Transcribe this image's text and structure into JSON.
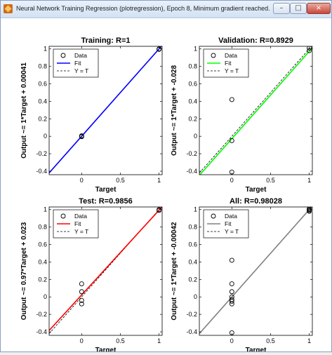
{
  "window": {
    "title": "Neural Network Training Regression (plotregression), Epoch 8, Minimum gradient reached.",
    "minimize_glyph": "–",
    "maximize_glyph": "□",
    "close_glyph": "×",
    "icon": "matlab-icon"
  },
  "legend_labels": {
    "data": "Data",
    "fit": "Fit",
    "ident": "Y = T"
  },
  "chart_data": [
    {
      "type": "scatter",
      "title": "Training: R=1",
      "xlabel": "Target",
      "ylabel": "Output ~= 1*Target + 0.00041",
      "xlim": [
        -0.42,
        1.04
      ],
      "ylim": [
        -0.44,
        1.03
      ],
      "xticks": [
        0,
        0.5,
        1
      ],
      "yticks": [
        -0.4,
        -0.2,
        0,
        0.2,
        0.4,
        0.6,
        0.8,
        1
      ],
      "fit_color": "#0000ff",
      "fit": {
        "slope": 1,
        "intercept": 0.00041
      },
      "points": [
        [
          0,
          0
        ],
        [
          0,
          0.005
        ],
        [
          0,
          -0.005
        ],
        [
          1,
          1
        ],
        [
          1,
          0.995
        ]
      ],
      "grid": false,
      "legend_position": "top-left"
    },
    {
      "type": "scatter",
      "title": "Validation: R=0.8929",
      "xlabel": "Target",
      "ylabel": "Output ~= 1*Target + -0.028",
      "xlim": [
        -0.42,
        1.04
      ],
      "ylim": [
        -0.44,
        1.03
      ],
      "xticks": [
        0,
        0.5,
        1
      ],
      "yticks": [
        -0.4,
        -0.2,
        0,
        0.2,
        0.4,
        0.6,
        0.8,
        1
      ],
      "fit_color": "#00ff00",
      "fit": {
        "slope": 1,
        "intercept": -0.028
      },
      "points": [
        [
          0,
          0.42
        ],
        [
          0,
          -0.05
        ],
        [
          0,
          -0.41
        ],
        [
          1,
          1.01
        ],
        [
          1,
          0.98
        ]
      ],
      "grid": false,
      "legend_position": "top-left"
    },
    {
      "type": "scatter",
      "title": "Test: R=0.9856",
      "xlabel": "Target",
      "ylabel": "Output ~= 0.97*Target + 0.023",
      "xlim": [
        -0.42,
        1.04
      ],
      "ylim": [
        -0.44,
        1.03
      ],
      "xticks": [
        0,
        0.5,
        1
      ],
      "yticks": [
        -0.4,
        -0.2,
        0,
        0.2,
        0.4,
        0.6,
        0.8,
        1
      ],
      "fit_color": "#ff0000",
      "fit": {
        "slope": 0.97,
        "intercept": 0.023
      },
      "points": [
        [
          0,
          0.15
        ],
        [
          0,
          0.06
        ],
        [
          0,
          -0.04
        ],
        [
          0,
          -0.08
        ],
        [
          1,
          0.99
        ],
        [
          1,
          1.0
        ]
      ],
      "grid": false,
      "legend_position": "top-left"
    },
    {
      "type": "scatter",
      "title": "All: R=0.98028",
      "xlabel": "Target",
      "ylabel": "Output ~= 1*Target + -0.00042",
      "xlim": [
        -0.42,
        1.04
      ],
      "ylim": [
        -0.44,
        1.03
      ],
      "xticks": [
        0,
        0.5,
        1
      ],
      "yticks": [
        -0.4,
        -0.2,
        0,
        0.2,
        0.4,
        0.6,
        0.8,
        1
      ],
      "fit_color": "#808080",
      "fit": {
        "slope": 1,
        "intercept": -0.00042
      },
      "points": [
        [
          0,
          0.42
        ],
        [
          0,
          0.15
        ],
        [
          0,
          0.06
        ],
        [
          0,
          0.0
        ],
        [
          0,
          -0.03
        ],
        [
          0,
          -0.05
        ],
        [
          0,
          -0.08
        ],
        [
          0,
          -0.41
        ],
        [
          1,
          1.01
        ],
        [
          1,
          1.0
        ],
        [
          1,
          0.99
        ],
        [
          1,
          0.98
        ]
      ],
      "grid": false,
      "legend_position": "top-left"
    }
  ]
}
